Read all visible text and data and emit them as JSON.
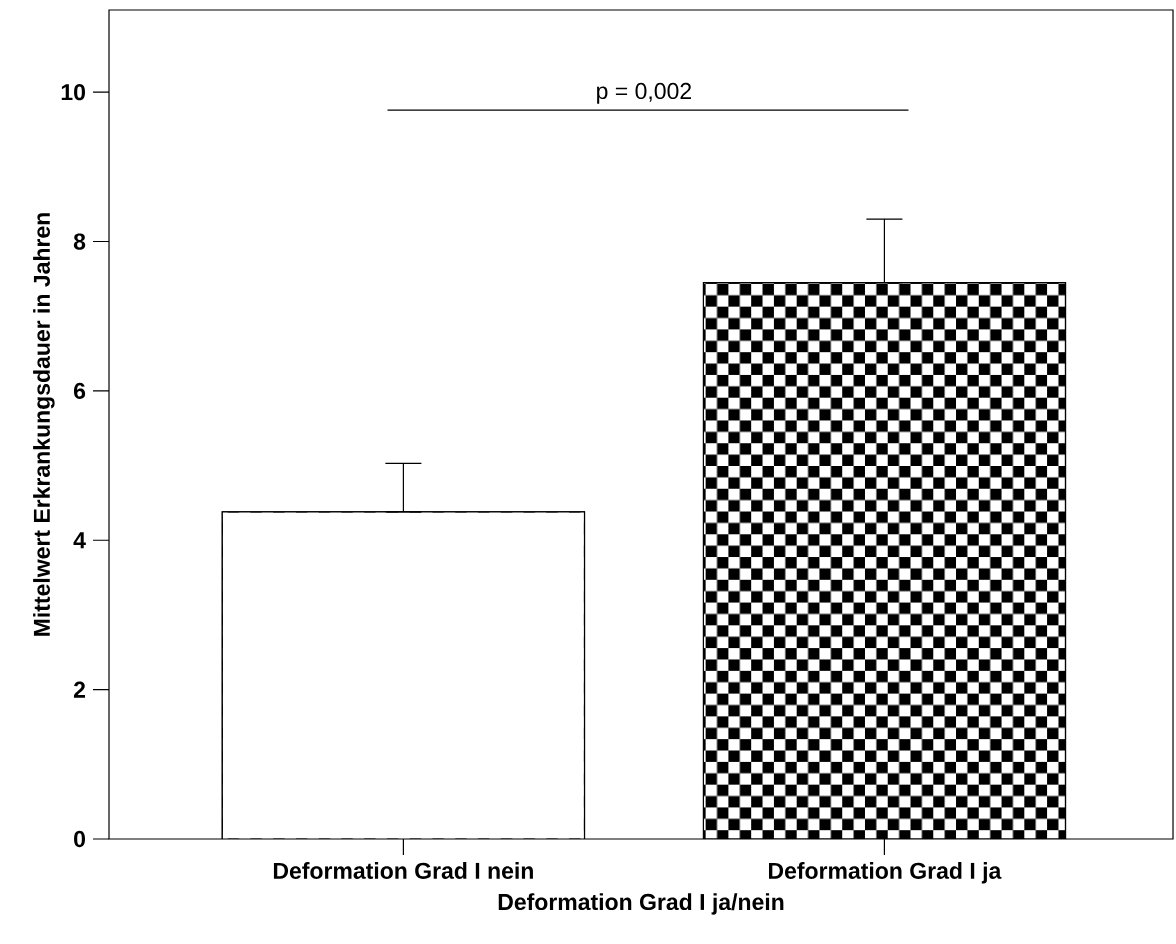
{
  "chart_data": {
    "type": "bar",
    "xlabel": "Deformation Grad I ja/nein",
    "ylabel": "Mittelwert Erkrankungsdauer in Jahren",
    "categories": [
      "Deformation Grad I nein",
      "Deformation Grad I ja"
    ],
    "values": [
      4.38,
      7.45
    ],
    "errors": [
      [
        4.38,
        5.03
      ],
      [
        7.45,
        8.3
      ]
    ],
    "colors": [
      "#ffffff",
      "#000000"
    ],
    "ylim": [
      0,
      11.1
    ],
    "yticks": [
      0,
      2,
      4,
      6,
      8,
      10
    ],
    "annotations": [
      "p = 0,002"
    ],
    "grid": false
  }
}
